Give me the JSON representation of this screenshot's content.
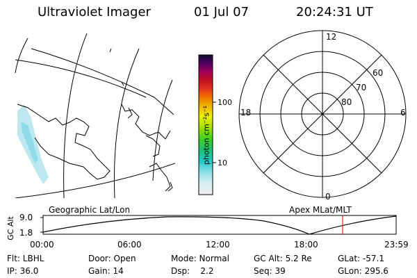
{
  "header": {
    "title": "Ultraviolet Imager",
    "date": "01 Jul 07",
    "time": "20:24:31 UT"
  },
  "colorbar": {
    "label": "photon cm⁻²s⁻¹",
    "ticks": [
      "100",
      "10"
    ]
  },
  "polar": {
    "mlt_labels": {
      "top": "12",
      "left": "18",
      "right": "6",
      "bottom": "0"
    },
    "lat_labels": [
      "60",
      "70",
      "80"
    ]
  },
  "timeseries": {
    "left_title": "Geographic Lat/Lon",
    "right_title": "Apex MLat/MLT",
    "ylabel": "GC Alt",
    "y_ticks": [
      "9.0",
      "1.8"
    ],
    "x_ticks": [
      "00:00",
      "06:00",
      "12:00",
      "18:00",
      "23:59"
    ],
    "current_marker_time": "20:24",
    "marker_color": "#e02020"
  },
  "status": {
    "row1": [
      {
        "key": "flt",
        "text": "Flt: LBHL"
      },
      {
        "key": "door",
        "text": "Door: Open"
      },
      {
        "key": "mode",
        "text": "Mode: Normal"
      },
      {
        "key": "gcalt",
        "text": "GC Alt: 5.2 Re"
      },
      {
        "key": "glat",
        "text": "GLat: -57.1"
      }
    ],
    "row2": [
      {
        "key": "ip",
        "text": "IP: 36.0"
      },
      {
        "key": "gain",
        "text": "Gain: 14"
      },
      {
        "key": "dsp",
        "text": "Dsp:    2.2"
      },
      {
        "key": "seq",
        "text": "Seq: 39"
      },
      {
        "key": "glon",
        "text": "GLon: 295.6"
      }
    ]
  }
}
